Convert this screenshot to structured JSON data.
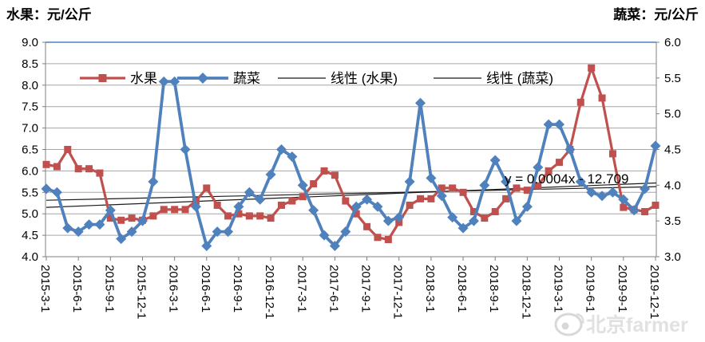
{
  "titles": {
    "left_axis": "水果：元/公斤",
    "right_axis": "蔬菜：元/公斤"
  },
  "legend": [
    {
      "label": "水果",
      "marker": "square-marker-icon",
      "color": "#c0504d",
      "type": "series"
    },
    {
      "label": "蔬菜",
      "marker": "diamond-marker-icon",
      "color": "#4f81bd",
      "type": "series"
    },
    {
      "label": "线性 (水果)",
      "marker": "line-icon",
      "color": "#1a1a1a",
      "type": "trend"
    },
    {
      "label": "线性 (蔬菜)",
      "marker": "line-icon",
      "color": "#1a1a1a",
      "type": "trend"
    }
  ],
  "annotation": {
    "text": "y = 0.0004x - 12.709"
  },
  "watermark": {
    "text": "北京farmer",
    "icon": "weibo-logo-icon"
  },
  "chart_data": {
    "type": "line",
    "title": "",
    "xlabel": "",
    "ylabel_left": "水果：元/公斤",
    "ylabel_right": "蔬菜：元/公斤",
    "grid": true,
    "legend_position": "top-inside",
    "left_axis": {
      "min": 4.0,
      "max": 9.0,
      "step": 0.5
    },
    "right_axis": {
      "min": 3.0,
      "max": 6.0,
      "step": 0.5
    },
    "x_tick_every": 3,
    "categories": [
      "2015-3-1",
      "2015-4-1",
      "2015-5-1",
      "2015-6-1",
      "2015-7-1",
      "2015-8-1",
      "2015-9-1",
      "2015-10-1",
      "2015-11-1",
      "2015-12-1",
      "2016-1-1",
      "2016-2-1",
      "2016-3-1",
      "2016-4-1",
      "2016-5-1",
      "2016-6-1",
      "2016-7-1",
      "2016-8-1",
      "2016-9-1",
      "2016-10-1",
      "2016-11-1",
      "2016-12-1",
      "2017-1-1",
      "2017-2-1",
      "2017-3-1",
      "2017-4-1",
      "2017-5-1",
      "2017-6-1",
      "2017-7-1",
      "2017-8-1",
      "2017-9-1",
      "2017-10-1",
      "2017-11-1",
      "2017-12-1",
      "2018-1-1",
      "2018-2-1",
      "2018-3-1",
      "2018-4-1",
      "2018-5-1",
      "2018-6-1",
      "2018-7-1",
      "2018-8-1",
      "2018-9-1",
      "2018-10-1",
      "2018-11-1",
      "2018-12-1",
      "2019-1-1",
      "2019-2-1",
      "2019-3-1",
      "2019-4-1",
      "2019-5-1",
      "2019-6-1",
      "2019-7-1",
      "2019-8-1",
      "2019-9-1",
      "2019-10-1",
      "2019-11-1",
      "2019-12-1"
    ],
    "series": [
      {
        "name": "水果",
        "axis": "left",
        "color": "#c0504d",
        "marker": "square",
        "values": [
          6.15,
          6.1,
          6.5,
          6.05,
          6.05,
          5.95,
          4.9,
          4.85,
          4.9,
          4.85,
          4.95,
          5.1,
          5.1,
          5.1,
          5.3,
          5.6,
          5.2,
          4.95,
          5.0,
          4.95,
          4.95,
          4.9,
          5.2,
          5.3,
          5.4,
          5.7,
          6.0,
          5.9,
          5.3,
          5.0,
          4.7,
          4.45,
          4.4,
          4.8,
          5.2,
          5.35,
          5.35,
          5.6,
          5.6,
          5.5,
          5.05,
          4.9,
          5.05,
          5.35,
          5.6,
          5.55,
          5.65,
          6.0,
          6.2,
          6.5,
          7.6,
          8.4,
          7.7,
          6.4,
          5.15,
          5.1,
          5.05,
          5.2
        ]
      },
      {
        "name": "蔬菜",
        "axis": "right",
        "color": "#4f81bd",
        "marker": "diamond",
        "values": [
          3.95,
          3.9,
          3.4,
          3.35,
          3.45,
          3.45,
          3.65,
          3.25,
          3.35,
          3.5,
          4.05,
          5.45,
          5.45,
          4.5,
          3.7,
          3.15,
          3.35,
          3.35,
          3.7,
          3.9,
          3.8,
          4.15,
          4.5,
          4.4,
          4.0,
          3.65,
          3.3,
          3.15,
          3.35,
          3.7,
          3.8,
          3.7,
          3.5,
          3.55,
          4.05,
          5.15,
          4.1,
          3.85,
          3.55,
          3.4,
          3.5,
          4.0,
          4.35,
          4.05,
          3.5,
          3.7,
          4.25,
          4.85,
          4.85,
          4.5,
          4.05,
          3.9,
          3.85,
          3.9,
          3.8,
          3.65,
          3.95,
          4.55
        ]
      }
    ],
    "trendlines": [
      {
        "name": "线性 (水果)",
        "axis": "left",
        "start": 5.15,
        "end": 5.72,
        "color": "#1a1a1a"
      },
      {
        "name": "线性 (蔬菜)",
        "axis": "right",
        "start": 3.79,
        "end": 3.98,
        "color": "#1a1a1a"
      }
    ]
  }
}
